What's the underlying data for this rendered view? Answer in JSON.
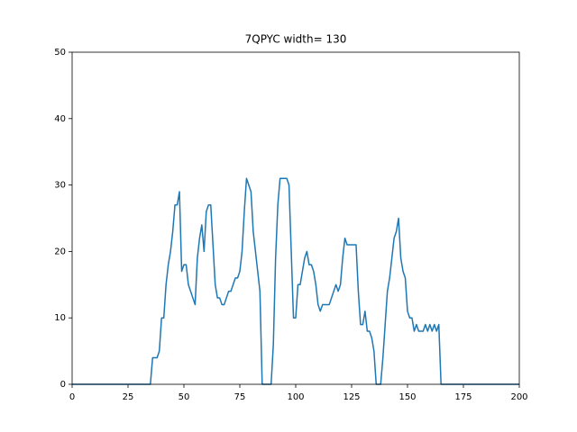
{
  "chart_data": {
    "type": "line",
    "title": "7QPYC width= 130",
    "color": "#1f77b4",
    "x": [
      0,
      35,
      36,
      37,
      38,
      39,
      40,
      41,
      42,
      43,
      44,
      45,
      46,
      47,
      48,
      49,
      50,
      51,
      52,
      53,
      54,
      55,
      56,
      57,
      58,
      59,
      60,
      61,
      62,
      63,
      64,
      65,
      66,
      67,
      68,
      69,
      70,
      71,
      72,
      73,
      74,
      75,
      76,
      77,
      78,
      79,
      80,
      81,
      82,
      83,
      84,
      85,
      86,
      87,
      88,
      89,
      90,
      91,
      92,
      93,
      94,
      95,
      96,
      97,
      98,
      99,
      100,
      101,
      102,
      103,
      104,
      105,
      106,
      107,
      108,
      109,
      110,
      111,
      112,
      113,
      114,
      115,
      116,
      117,
      118,
      119,
      120,
      121,
      122,
      123,
      124,
      125,
      126,
      127,
      128,
      129,
      130,
      131,
      132,
      133,
      134,
      135,
      136,
      137,
      138,
      139,
      140,
      141,
      142,
      143,
      144,
      145,
      146,
      147,
      148,
      149,
      150,
      151,
      152,
      153,
      154,
      155,
      156,
      157,
      158,
      159,
      160,
      161,
      162,
      163,
      164,
      165,
      200
    ],
    "values": [
      0,
      0,
      4,
      4,
      4,
      5,
      10,
      10,
      15,
      18,
      20,
      23,
      27,
      27,
      29,
      17,
      18,
      18,
      15,
      14,
      13,
      12,
      19,
      22,
      24,
      20,
      26,
      27,
      27,
      21,
      15,
      13,
      13,
      12,
      12,
      13,
      14,
      14,
      15,
      16,
      16,
      17,
      20,
      26,
      31,
      30,
      29,
      23,
      20,
      17,
      14,
      0,
      0,
      0,
      0,
      0,
      6,
      19,
      27,
      31,
      31,
      31,
      31,
      30,
      20,
      10,
      10,
      15,
      15,
      17,
      19,
      20,
      18,
      18,
      17,
      15,
      12,
      11,
      12,
      12,
      12,
      12,
      13,
      14,
      15,
      14,
      15,
      19,
      22,
      21,
      21,
      21,
      21,
      21,
      14,
      9,
      9,
      11,
      8,
      8,
      7,
      5,
      0,
      0,
      0,
      4,
      9,
      14,
      16,
      19,
      22,
      23,
      25,
      19,
      17,
      16,
      11,
      10,
      10,
      8,
      9,
      8,
      8,
      8,
      9,
      8,
      9,
      8,
      9,
      8,
      9,
      0,
      0
    ],
    "xlim": [
      0,
      200
    ],
    "ylim": [
      0,
      50
    ],
    "xticks": [
      0,
      25,
      50,
      75,
      100,
      125,
      150,
      175,
      200
    ],
    "yticks": [
      0,
      10,
      20,
      30,
      40,
      50
    ]
  }
}
